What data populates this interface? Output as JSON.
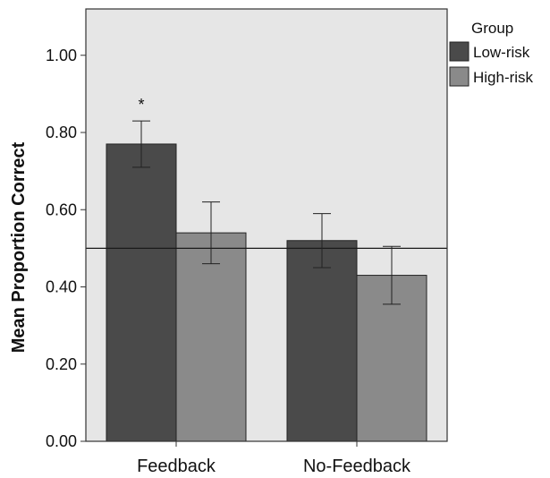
{
  "chart_data": {
    "type": "bar",
    "categories": [
      "Feedback",
      "No-Feedback"
    ],
    "series": [
      {
        "name": "Low-risk",
        "values": [
          0.77,
          0.52
        ],
        "error": [
          0.06,
          0.07
        ]
      },
      {
        "name": "High-risk",
        "values": [
          0.54,
          0.43
        ],
        "error": [
          0.08,
          0.075
        ]
      }
    ],
    "colors": {
      "Low-risk": "#4a4a4a",
      "High-risk": "#8a8a8a",
      "plot_background": "#e6e6e6"
    },
    "reference_line": 0.5,
    "annotations": [
      {
        "text": "*",
        "category": "Feedback",
        "series": "Low-risk"
      }
    ],
    "title": "",
    "xlabel": "",
    "ylabel": "Mean Proportion Correct",
    "ylim": [
      0,
      1.12
    ],
    "yticks": [
      "0.00",
      "0.20",
      "0.40",
      "0.60",
      "0.80",
      "1.00"
    ],
    "legend_title": "Group",
    "legend_position": "right",
    "grid": false
  }
}
